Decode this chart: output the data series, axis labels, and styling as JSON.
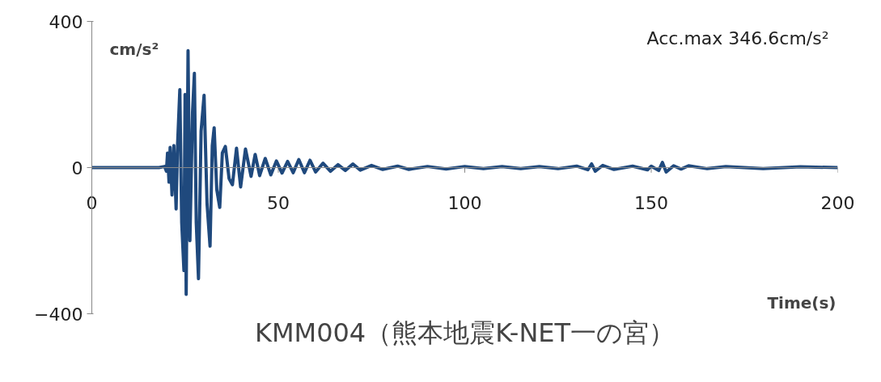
{
  "chart_data": {
    "type": "line",
    "title": "KMM004（熊本地震K-NET一の宮）",
    "xlabel": "Time(s)",
    "ylabel": "cm/s²",
    "annotations": [
      "Acc.max  346.6cm/s²"
    ],
    "xlim": [
      0,
      200
    ],
    "ylim": [
      -400,
      400
    ],
    "xticks": [
      0,
      50,
      100,
      150,
      200
    ],
    "yticks": [
      -400,
      0,
      400
    ],
    "series": [
      {
        "color": "#1f497d",
        "x": [
          0,
          18,
          19.5,
          20,
          20.3,
          20.7,
          21,
          21.5,
          22,
          22.6,
          23,
          23.6,
          24.1,
          24.7,
          25.0,
          25.3,
          25.8,
          26.3,
          27,
          27.5,
          28,
          28.6,
          29.3,
          30.1,
          30.9,
          31.7,
          32.3,
          32.8,
          33.5,
          34.3,
          35,
          35.8,
          36.8,
          37.7,
          38.8,
          39.9,
          41.2,
          42.7,
          43.8,
          45,
          46.5,
          48,
          49.5,
          51,
          52.5,
          54,
          55.5,
          57,
          58.5,
          60,
          62,
          64,
          66,
          68,
          70,
          72,
          75,
          78,
          82,
          85,
          90,
          95,
          100,
          105,
          110,
          115,
          120,
          125,
          130,
          133,
          134,
          135,
          137,
          140,
          145,
          149,
          150,
          152,
          153,
          154,
          156,
          158,
          160,
          165,
          170,
          180,
          190,
          200
        ],
        "values": [
          0,
          0,
          3,
          -10,
          40,
          -40,
          55,
          -75,
          60,
          -113,
          64,
          213,
          -150,
          -282,
          200,
          -347,
          320,
          -200,
          150,
          258,
          -150,
          -304,
          100,
          198,
          -100,
          -215,
          60,
          109,
          -60,
          -109,
          40,
          58,
          -30,
          -47,
          53,
          -53,
          51,
          -24,
          36,
          -22,
          25,
          -20,
          18,
          -15,
          17,
          -14,
          22,
          -14,
          20,
          -12,
          12,
          -10,
          8,
          -8,
          10,
          -7,
          6,
          -5,
          4,
          -5,
          3,
          -4,
          3,
          -3,
          3,
          -3,
          3,
          -3,
          4,
          -6,
          10,
          -10,
          6,
          -5,
          4,
          -6,
          4,
          -8,
          14,
          -12,
          5,
          -4,
          5,
          -3,
          3,
          -3,
          2,
          0
        ]
      }
    ]
  }
}
